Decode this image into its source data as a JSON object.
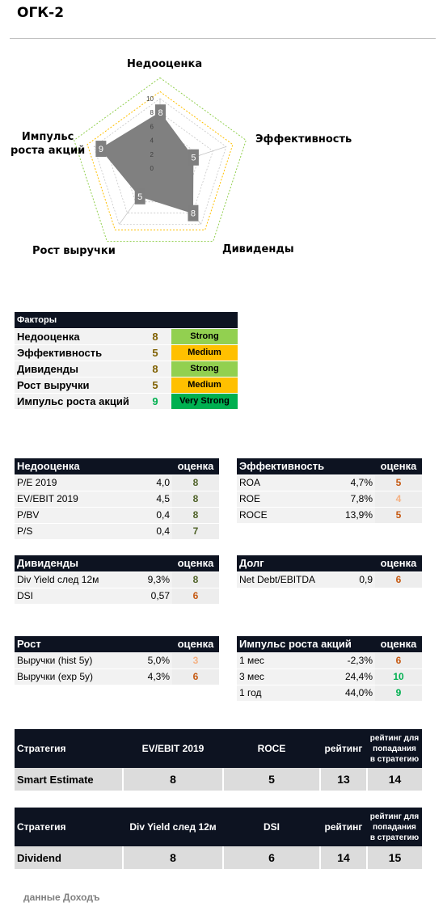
{
  "page_title": "ОГК-2",
  "radar": {
    "axes": [
      {
        "label": "Недооценка",
        "value": 8
      },
      {
        "label": "Эффективность",
        "value": 5
      },
      {
        "label": "Дивиденды",
        "value": 8
      },
      {
        "label": "Рост выручки",
        "value": 5
      },
      {
        "label": "Импульс\nроста акций",
        "value": 9
      }
    ],
    "label_lines": {
      "impulse_line1": "Импульс",
      "impulse_line2": "роста акций"
    },
    "scale_ticks": [
      "10",
      "8",
      "6",
      "4",
      "2",
      "0"
    ],
    "max": 10,
    "colors": {
      "fill": "#808080",
      "ring_green": "#92d050",
      "ring_yellow": "#ffc000",
      "grid": "#bfbfbf"
    }
  },
  "factors": {
    "header": "Факторы",
    "rows": [
      {
        "name": "Недооценка",
        "score": "8",
        "label": "Strong",
        "score_color": "#7f6000",
        "badge_color": "#92d050"
      },
      {
        "name": "Эффективность",
        "score": "5",
        "label": "Medium",
        "score_color": "#7f6000",
        "badge_color": "#ffc000"
      },
      {
        "name": "Дивиденды",
        "score": "8",
        "label": "Strong",
        "score_color": "#7f6000",
        "badge_color": "#92d050"
      },
      {
        "name": "Рост выручки",
        "score": "5",
        "label": "Medium",
        "score_color": "#7f6000",
        "badge_color": "#ffc000"
      },
      {
        "name": "Импульс роста акций",
        "score": "9",
        "label": "Very Strong",
        "score_color": "#00b050",
        "badge_color": "#00b050"
      }
    ]
  },
  "tables": {
    "nedootsenka": {
      "title": "Недооценка",
      "ocenka": "оценка",
      "rows": [
        {
          "name": "P/E 2019",
          "value": "4,0",
          "score": "8",
          "color": "#4f6228"
        },
        {
          "name": "EV/EBIT 2019",
          "value": "4,5",
          "score": "8",
          "color": "#4f6228"
        },
        {
          "name": "P/BV",
          "value": "0,4",
          "score": "8",
          "color": "#4f6228"
        },
        {
          "name": "P/S",
          "value": "0,4",
          "score": "7",
          "color": "#4f6228"
        }
      ]
    },
    "effektivnost": {
      "title": "Эффективность",
      "ocenka": "оценка",
      "rows": [
        {
          "name": "ROA",
          "value": "4,7%",
          "score": "5",
          "color": "#c65911"
        },
        {
          "name": "ROE",
          "value": "7,8%",
          "score": "4",
          "color": "#f4b183"
        },
        {
          "name": "ROCE",
          "value": "13,9%",
          "score": "5",
          "color": "#c65911"
        }
      ]
    },
    "dividendy": {
      "title": "Дивиденды",
      "ocenka": "оценка",
      "rows": [
        {
          "name": "Div Yield след 12м",
          "value": "9,3%",
          "score": "8",
          "color": "#4f6228"
        },
        {
          "name": "DSI",
          "value": "0,57",
          "score": "6",
          "color": "#c65911"
        }
      ]
    },
    "dolg": {
      "title": "Долг",
      "ocenka": "оценка",
      "rows": [
        {
          "name": "Net Debt/EBITDA",
          "value": "0,9",
          "score": "6",
          "color": "#c65911"
        }
      ]
    },
    "rost": {
      "title": "Рост",
      "ocenka": "оценка",
      "rows": [
        {
          "name": "Выручки (hist 5y)",
          "value": "5,0%",
          "score": "3",
          "color": "#f4b183"
        },
        {
          "name": "Выручки (exp 5y)",
          "value": "4,3%",
          "score": "6",
          "color": "#c65911"
        }
      ]
    },
    "impuls": {
      "title": "Импульс роста акций",
      "ocenka": "оценка",
      "rows": [
        {
          "name": "1 мес",
          "value": "-2,3%",
          "score": "6",
          "color": "#c65911"
        },
        {
          "name": "3 мес",
          "value": "24,4%",
          "score": "10",
          "color": "#00b050"
        },
        {
          "name": "1 год",
          "value": "44,0%",
          "score": "9",
          "color": "#00b050"
        }
      ]
    }
  },
  "strategies": [
    {
      "h_strategy": "Стратегия",
      "h_col1": "EV/EBIT 2019",
      "h_col2": "ROCE",
      "h_rating": "рейтинг",
      "h_threshold": "рейтинг для попадания в стратегию",
      "name": "Smart Estimate",
      "v1": "8",
      "v2": "5",
      "rating": "13",
      "threshold": "14"
    },
    {
      "h_strategy": "Стратегия",
      "h_col1": "Div Yield след 12м",
      "h_col2": "DSI",
      "h_rating": "рейтинг",
      "h_threshold": "рейтинг для попадания в стратегию",
      "name": "Dividend",
      "v1": "8",
      "v2": "6",
      "rating": "14",
      "threshold": "15"
    }
  ],
  "footer": "данные Доходъ"
}
